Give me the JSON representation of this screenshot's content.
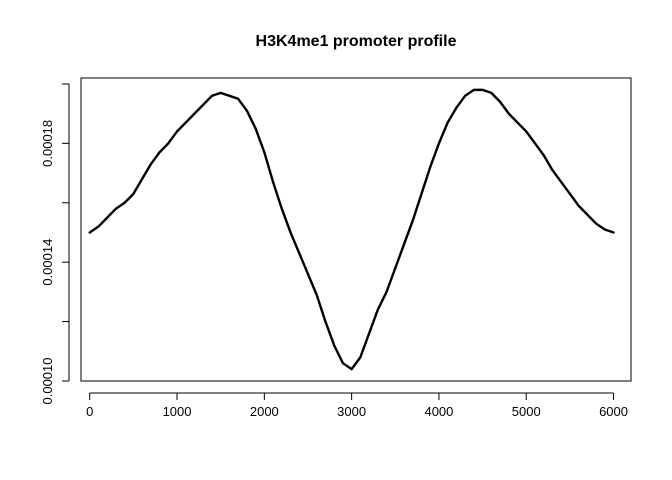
{
  "chart_data": {
    "type": "line",
    "title": "H3K4me1 promoter profile",
    "xlabel": "",
    "ylabel": "",
    "xlim": [
      -100,
      6200
    ],
    "ylim": [
      0.0001,
      0.000202
    ],
    "x_ticks": [
      0,
      1000,
      2000,
      3000,
      4000,
      5000,
      6000
    ],
    "x_tick_labels": [
      "0",
      "1000",
      "2000",
      "3000",
      "4000",
      "5000",
      "6000"
    ],
    "y_ticks": [
      0.0001,
      0.00012,
      0.00014,
      0.00016,
      0.00018,
      0.0002
    ],
    "y_tick_labels": [
      "0.00010",
      "",
      "0.00014",
      "",
      "0.00018",
      ""
    ],
    "grid": false,
    "series": [
      {
        "color": "#000000",
        "x": [
          0,
          100,
          200,
          300,
          400,
          500,
          600,
          700,
          800,
          900,
          1000,
          1100,
          1200,
          1300,
          1400,
          1500,
          1600,
          1700,
          1800,
          1900,
          2000,
          2100,
          2200,
          2300,
          2400,
          2500,
          2600,
          2700,
          2800,
          2900,
          3000,
          3100,
          3200,
          3300,
          3400,
          3500,
          3600,
          3700,
          3800,
          3900,
          4000,
          4100,
          4200,
          4300,
          4400,
          4500,
          4600,
          4700,
          4800,
          4900,
          5000,
          5100,
          5200,
          5300,
          5400,
          5500,
          5600,
          5700,
          5800,
          5900,
          6000
        ],
        "y": [
          0.00015,
          0.000152,
          0.000155,
          0.000158,
          0.00016,
          0.000163,
          0.000168,
          0.000173,
          0.000177,
          0.00018,
          0.000184,
          0.000187,
          0.00019,
          0.000193,
          0.000196,
          0.000197,
          0.000196,
          0.000195,
          0.000191,
          0.000185,
          0.000177,
          0.000167,
          0.000158,
          0.00015,
          0.000143,
          0.000136,
          0.000129,
          0.00012,
          0.000112,
          0.000106,
          0.000104,
          0.000108,
          0.000116,
          0.000124,
          0.00013,
          0.000138,
          0.000146,
          0.000154,
          0.000163,
          0.000172,
          0.00018,
          0.000187,
          0.000192,
          0.000196,
          0.000198,
          0.000198,
          0.000197,
          0.000194,
          0.00019,
          0.000187,
          0.000184,
          0.00018,
          0.000176,
          0.000171,
          0.000167,
          0.000163,
          0.000159,
          0.000156,
          0.000153,
          0.000151,
          0.00015
        ]
      }
    ]
  }
}
